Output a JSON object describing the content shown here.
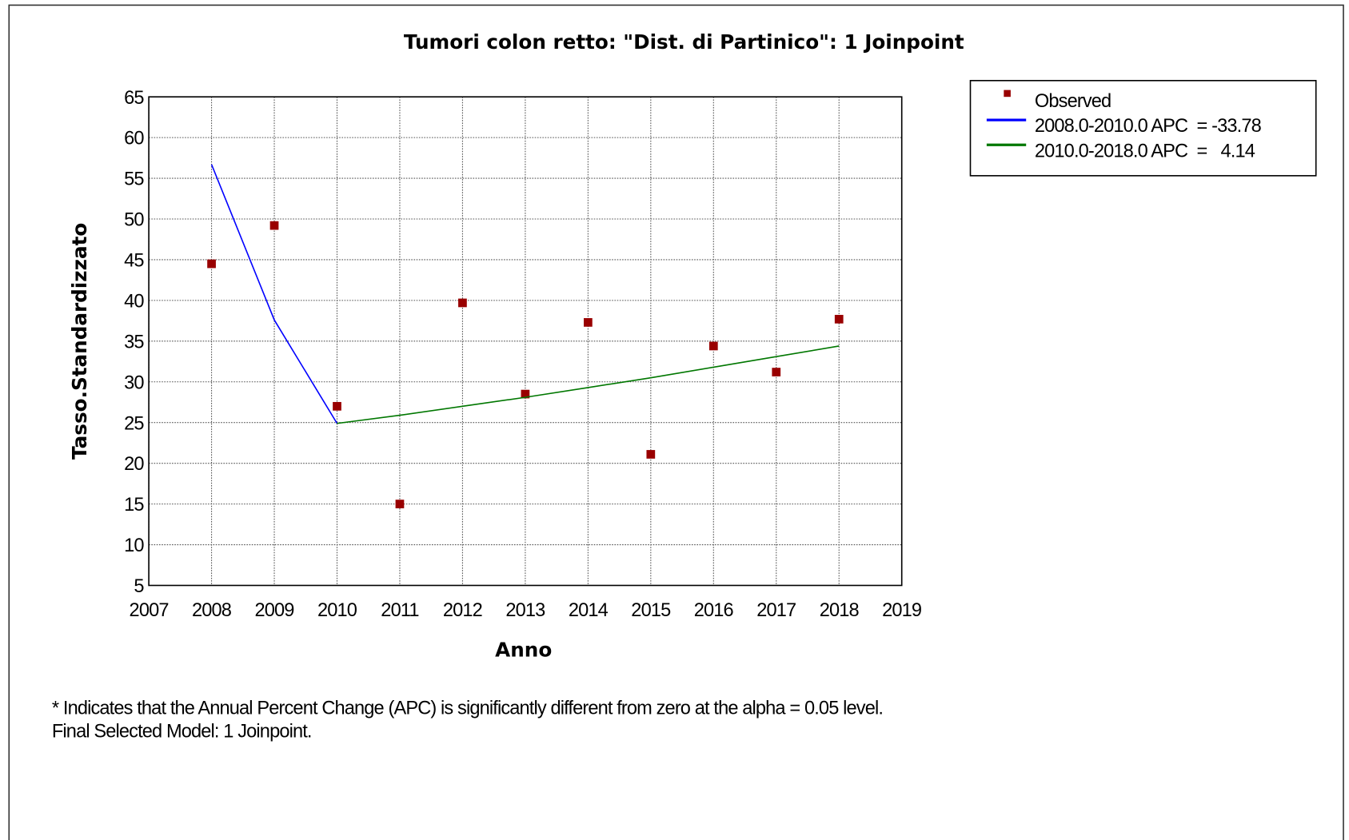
{
  "chart_data": {
    "type": "line",
    "title": "Tumori colon retto: \"Dist. di Partinico\": 1 Joinpoint",
    "xlabel": "Anno",
    "ylabel": "Tasso.Standardizzato",
    "x": [
      2008,
      2009,
      2010,
      2011,
      2012,
      2013,
      2014,
      2015,
      2016,
      2017,
      2018
    ],
    "series": [
      {
        "name": "Observed",
        "type": "scatter",
        "color": "#990000",
        "values": [
          44.5,
          49.2,
          27.0,
          15.0,
          39.7,
          28.5,
          37.3,
          21.1,
          34.4,
          31.2,
          37.7
        ]
      },
      {
        "name": "2008.0-2010.0 APC  = -33.78",
        "type": "line",
        "color": "#0000ff",
        "values": [
          56.7,
          37.6,
          24.9,
          null,
          null,
          null,
          null,
          null,
          null,
          null,
          null
        ]
      },
      {
        "name": "2010.0-2018.0 APC  =   4.14",
        "type": "line",
        "color": "#007700",
        "values": [
          null,
          null,
          24.9,
          25.9,
          27.0,
          28.1,
          29.3,
          30.5,
          31.8,
          33.1,
          34.4
        ]
      }
    ],
    "xlim": [
      2007,
      2019
    ],
    "xticks": [
      2007,
      2008,
      2009,
      2010,
      2011,
      2012,
      2013,
      2014,
      2015,
      2016,
      2017,
      2018,
      2019
    ],
    "ylim": [
      5,
      65
    ],
    "yticks": [
      5,
      10,
      15,
      20,
      25,
      30,
      35,
      40,
      45,
      50,
      55,
      60,
      65
    ],
    "grid": true,
    "legend": "outside-top-right",
    "notes": [
      "* Indicates that the Annual Percent Change (APC) is significantly different from zero at the alpha = 0.05 level.",
      "Final Selected Model: 1 Joinpoint."
    ]
  }
}
